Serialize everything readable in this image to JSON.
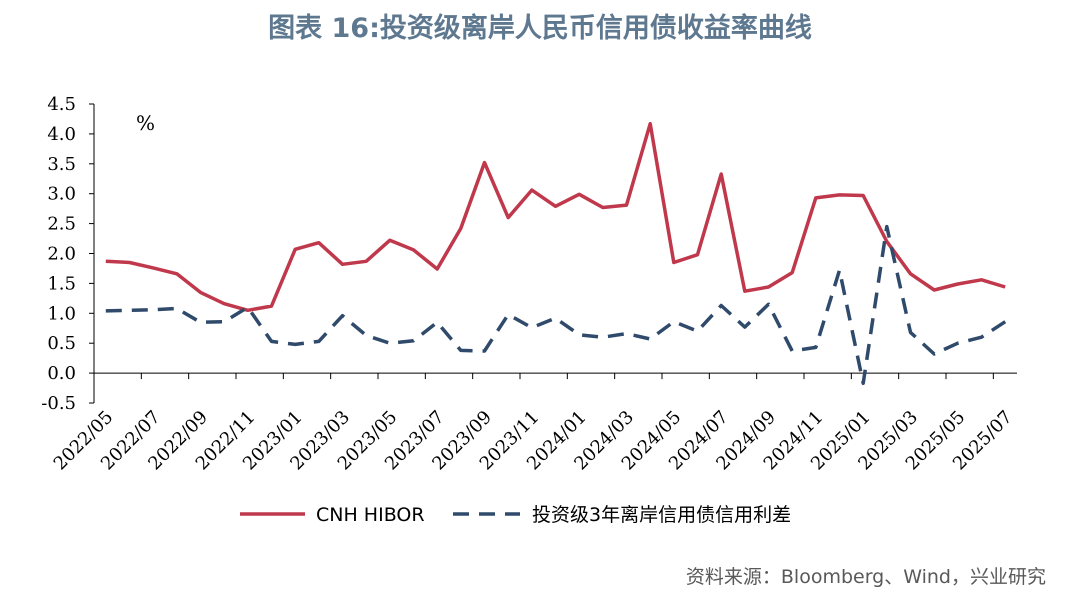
{
  "page": {
    "title": "图表 16:投资级离岸人民币信用债收益率曲线",
    "source": "资料来源：Bloomberg、Wind，兴业研究"
  },
  "chart_data": {
    "type": "line",
    "title": "图表 16:投资级离岸人民币信用债收益率曲线",
    "unit": "%",
    "ylim": [
      -0.5,
      4.5
    ],
    "yticks": [
      "4.5",
      "4.0",
      "3.5",
      "3.0",
      "2.5",
      "2.0",
      "1.5",
      "1.0",
      "0.5",
      "0.0",
      "-0.5"
    ],
    "ytick_values": [
      4.5,
      4.0,
      3.5,
      3.0,
      2.5,
      2.0,
      1.5,
      1.0,
      0.5,
      0.0,
      -0.5
    ],
    "grid": false,
    "legend_position": "bottom",
    "categories": [
      "2022/05",
      "2022/06",
      "2022/07",
      "2022/08",
      "2022/09",
      "2022/10",
      "2022/11",
      "2022/12",
      "2023/01",
      "2023/02",
      "2023/03",
      "2023/04",
      "2023/05",
      "2023/06",
      "2023/07",
      "2023/08",
      "2023/09",
      "2023/10",
      "2023/11",
      "2023/12",
      "2024/01",
      "2024/02",
      "2024/03",
      "2024/04",
      "2024/05",
      "2024/06",
      "2024/07",
      "2024/08",
      "2024/09",
      "2024/10",
      "2024/11",
      "2024/12",
      "2025/01",
      "2025/02",
      "2025/03",
      "2025/04",
      "2025/05",
      "2025/06",
      "2025/07"
    ],
    "xtick_labels": [
      "2022/05",
      "2022/07",
      "2022/09",
      "2022/11",
      "2023/01",
      "2023/03",
      "2023/05",
      "2023/07",
      "2023/09",
      "2023/11",
      "2024/01",
      "2024/03",
      "2024/05",
      "2024/07",
      "2024/09",
      "2024/11",
      "2025/01",
      "2025/03",
      "2025/05",
      "2025/07"
    ],
    "series": [
      {
        "name": "CNH HIBOR",
        "color": "#c0384b",
        "style": "solid",
        "values": [
          1.87,
          1.85,
          1.76,
          1.66,
          1.35,
          1.16,
          1.05,
          1.12,
          2.07,
          2.18,
          1.82,
          1.87,
          2.22,
          2.06,
          1.74,
          2.42,
          3.52,
          2.6,
          3.06,
          2.79,
          2.99,
          2.77,
          2.81,
          4.17,
          1.85,
          1.98,
          3.33,
          1.37,
          1.44,
          1.68,
          2.93,
          2.98,
          2.97,
          2.2,
          1.66,
          1.39,
          1.49,
          1.56,
          1.44
        ]
      },
      {
        "name": "投资级3年离岸信用债信用利差",
        "color": "#2f4a6b",
        "style": "dashed",
        "values": [
          1.04,
          1.05,
          1.06,
          1.08,
          0.85,
          0.86,
          1.1,
          0.53,
          0.48,
          0.53,
          0.96,
          0.63,
          0.5,
          0.54,
          0.85,
          0.38,
          0.37,
          0.98,
          0.76,
          0.92,
          0.64,
          0.6,
          0.66,
          0.57,
          0.86,
          0.7,
          1.13,
          0.77,
          1.15,
          0.37,
          0.43,
          1.72,
          -0.17,
          2.45,
          0.68,
          0.32,
          0.5,
          0.6,
          0.86
        ]
      }
    ]
  }
}
